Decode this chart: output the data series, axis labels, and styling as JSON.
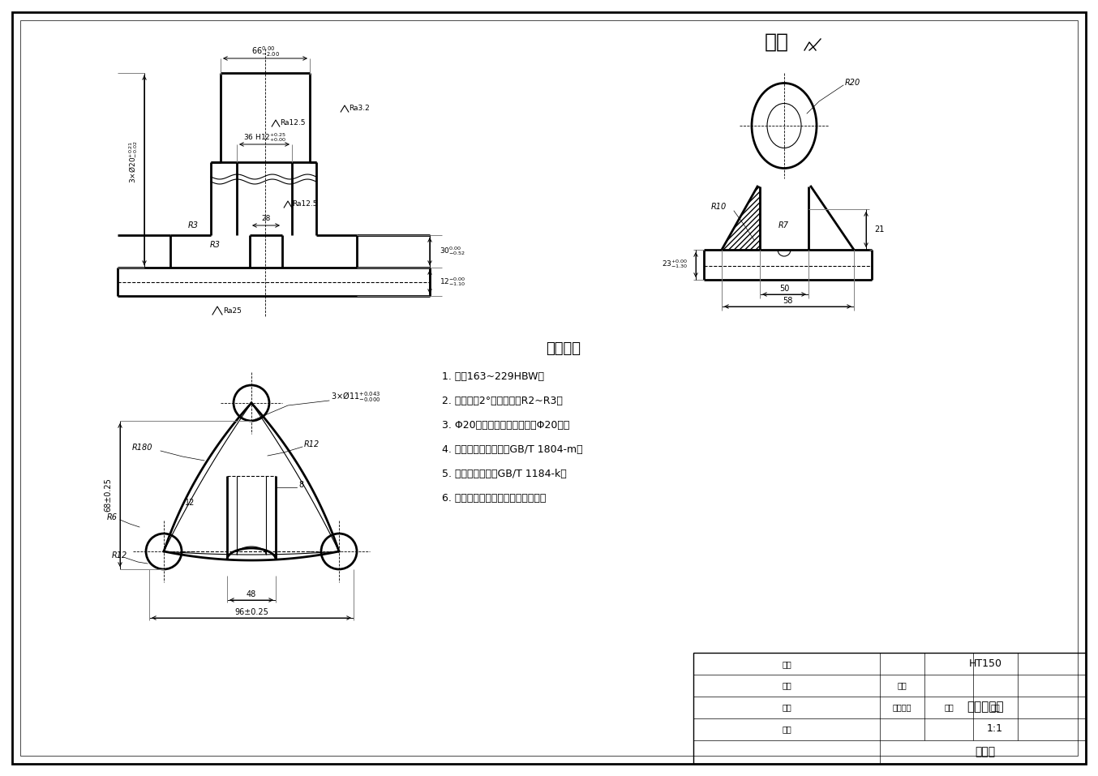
{
  "bg_color": "#f0f0f0",
  "paper_color": "#ffffff",
  "line_color": "#000000",
  "title": "操纵杆支架",
  "subtitle": "零件图",
  "material": "HT150",
  "scale": "1:1",
  "tech_title": "技术要求",
  "tech_reqs": [
    "1. 硬度163~229HBW；",
    "2. 铸造抽模2°，未注圆角R2~R3；",
    "3. Φ20塞规应能同时通过二个Φ20孔；",
    "4. 线性尺寸未注公差为GB/T 1804-m；",
    "5. 未注形位公差为GB/T 1184-k；",
    "6. 未加工的外表涂以铁红纯酸底漆。"
  ],
  "qita_label": "其余"
}
